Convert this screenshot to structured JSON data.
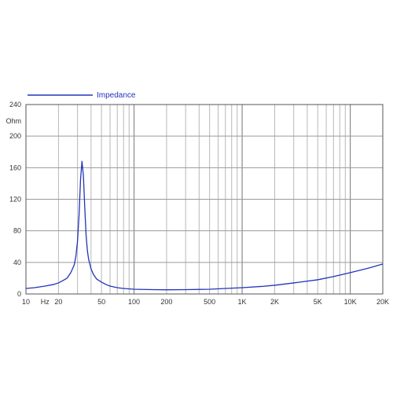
{
  "chart_data": {
    "type": "line",
    "title": "",
    "xlabel": "",
    "ylabel": "",
    "y_unit_label": "Ohm",
    "x_scale": "log",
    "xlim": [
      10,
      20000
    ],
    "ylim": [
      0,
      240
    ],
    "grid": true,
    "legend_position": "top-left",
    "x_ticks": [
      {
        "value": 10,
        "label": "10"
      },
      {
        "value": 15,
        "label": "Hz"
      },
      {
        "value": 20,
        "label": "20"
      },
      {
        "value": 50,
        "label": "50"
      },
      {
        "value": 100,
        "label": "100"
      },
      {
        "value": 200,
        "label": "200"
      },
      {
        "value": 500,
        "label": "500"
      },
      {
        "value": 1000,
        "label": "1K"
      },
      {
        "value": 2000,
        "label": "2K"
      },
      {
        "value": 5000,
        "label": "5K"
      },
      {
        "value": 10000,
        "label": "10K"
      },
      {
        "value": 20000,
        "label": "20K"
      }
    ],
    "y_ticks": [
      {
        "value": 0,
        "label": "0"
      },
      {
        "value": 40,
        "label": "40"
      },
      {
        "value": 80,
        "label": "80"
      },
      {
        "value": 120,
        "label": "120"
      },
      {
        "value": 160,
        "label": "160"
      },
      {
        "value": 200,
        "label": "200"
      },
      {
        "value": 240,
        "label": "240"
      }
    ],
    "series": [
      {
        "name": "Impedance",
        "color": "#2233bb",
        "x": [
          10,
          12,
          15,
          18,
          20,
          22,
          24,
          26,
          28,
          29,
          30,
          31,
          32,
          33,
          34,
          35,
          36,
          37,
          38,
          40,
          42,
          45,
          50,
          55,
          60,
          70,
          80,
          100,
          150,
          200,
          300,
          500,
          700,
          1000,
          1500,
          2000,
          3000,
          5000,
          7000,
          10000,
          15000,
          20000
        ],
        "values": [
          7,
          8,
          10,
          12,
          14,
          17,
          20,
          27,
          37,
          48,
          67,
          100,
          145,
          168,
          150,
          110,
          75,
          55,
          44,
          32,
          25,
          19,
          15,
          12,
          10,
          8,
          7,
          6,
          5.5,
          5.3,
          5.5,
          6,
          7,
          8,
          9.5,
          11,
          14,
          18,
          22,
          27,
          33,
          38
        ]
      }
    ]
  }
}
